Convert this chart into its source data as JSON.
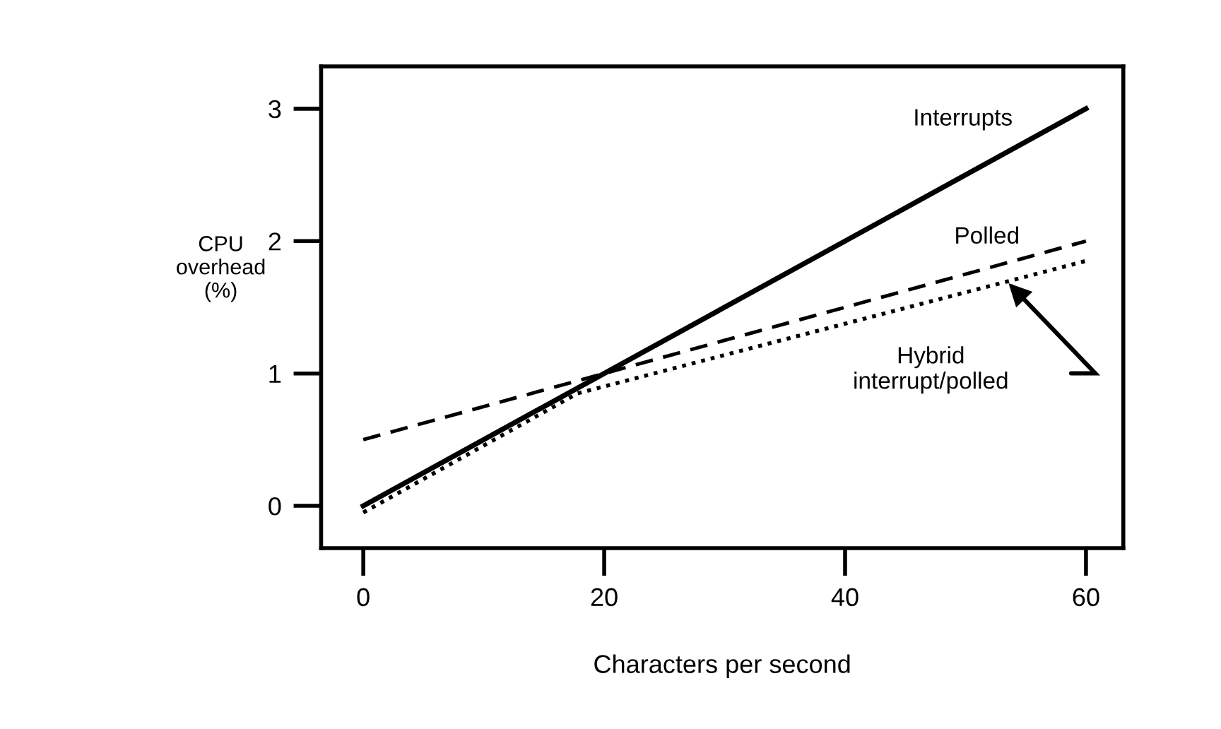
{
  "chart_data": {
    "type": "line",
    "xlabel": "Characters per second",
    "ylabel": "CPU\noverhead\n(%)",
    "xlim": [
      -3.5,
      63.1
    ],
    "ylim": [
      -0.32,
      3.32
    ],
    "xticks": [
      0,
      20,
      40,
      60
    ],
    "yticks": [
      0,
      1,
      2,
      3
    ],
    "grid": false,
    "legend": false,
    "marker": "none",
    "series": [
      {
        "name": "Interrupts",
        "color": "#000000",
        "line_style": "solid",
        "x": [
          0,
          60
        ],
        "values": [
          0,
          3
        ]
      },
      {
        "name": "Polled",
        "color": "#000000",
        "line_style": "dashed",
        "x": [
          0,
          60
        ],
        "values": [
          0.5,
          2.0
        ]
      },
      {
        "name": "Hybrid\ninterrupt/polled",
        "color": "#000000",
        "line_style": "dotted",
        "x": [
          0,
          17.8,
          60
        ],
        "values": [
          -0.05,
          0.85,
          1.85
        ]
      }
    ]
  }
}
